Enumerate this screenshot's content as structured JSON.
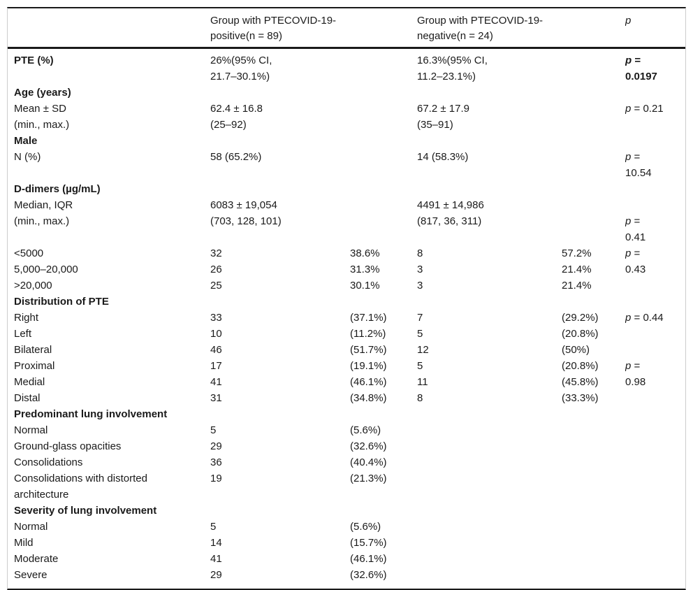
{
  "table": {
    "colors": {
      "text": "#1a1a1a",
      "rule_dark": "#1a1a1a",
      "rule_light": "#cccccc",
      "background": "#ffffff"
    },
    "header": {
      "label": "",
      "group1": "Group with PTECOVID-19-\npositive(n = 89)",
      "group2": "Group with PTECOVID-19-\nnegative(n = 24)",
      "p": "p"
    },
    "rows": [
      {
        "label": "PTE (%)",
        "bold": true,
        "v1": "26%(95% CI,\n21.7–30.1%)",
        "v2": "16.3%(95% CI,\n11.2–23.1%)",
        "p": "p =\n0.0197",
        "pBold": true
      },
      {
        "label": "Age (years)",
        "bold": true
      },
      {
        "label": "Mean ± SD",
        "v1": "62.4 ± 16.8",
        "v2": "67.2 ± 17.9",
        "p": "p = 0.21"
      },
      {
        "label": "(min., max.)",
        "v1": "(25–92)",
        "v2": "(35–91)"
      },
      {
        "label": "Male",
        "bold": true
      },
      {
        "label": "N (%)",
        "v1": "58 (65.2%)",
        "v2": "14 (58.3%)",
        "p": "p =\n10.54"
      },
      {
        "label": "D-dimers (µg/mL)",
        "bold": true
      },
      {
        "label": "Median, IQR",
        "v1": "6083 ± 19,054",
        "v2": "4491 ± 14,986"
      },
      {
        "label": "(min., max.)",
        "v1": "(703, 128, 101)",
        "v2": "(817, 36, 311)",
        "p": "p =\n0.41"
      },
      {
        "label": "<5000",
        "v1": "32",
        "p1": "38.6%",
        "v2": "8",
        "p2": "57.2%",
        "p": "p =\n0.43",
        "pRowspan": 2
      },
      {
        "label": "5,000–20,000",
        "v1": "26",
        "p1": "31.3%",
        "v2": "3",
        "p2": "21.4%",
        "pSkip": true
      },
      {
        "label": ">20,000",
        "v1": "25",
        "p1": "30.1%",
        "v2": "3",
        "p2": "21.4%"
      },
      {
        "label": "Distribution of PTE",
        "bold": true
      },
      {
        "label": "Right",
        "v1": "33",
        "p1": "(37.1%)",
        "v2": "7",
        "p2": "(29.2%)",
        "p": "p = 0.44"
      },
      {
        "label": "Left",
        "v1": "10",
        "p1": "(11.2%)",
        "v2": "5",
        "p2": "(20.8%)"
      },
      {
        "label": "Bilateral",
        "v1": "46",
        "p1": "(51.7%)",
        "v2": "12",
        "p2": "(50%)"
      },
      {
        "label": "Proximal",
        "v1": "17",
        "p1": "(19.1%)",
        "v2": "5",
        "p2": "(20.8%)",
        "p": "p =\n0.98",
        "pRowspan": 2
      },
      {
        "label": "Medial",
        "v1": "41",
        "p1": "(46.1%)",
        "v2": "11",
        "p2": "(45.8%)",
        "pSkip": true
      },
      {
        "label": "Distal",
        "v1": "31",
        "p1": "(34.8%)",
        "v2": "8",
        "p2": "(33.3%)"
      },
      {
        "label": "Predominant lung involvement",
        "bold": true
      },
      {
        "label": "Normal",
        "v1": "5",
        "p1": "(5.6%)"
      },
      {
        "label": "Ground-glass opacities",
        "v1": "29",
        "p1": "(32.6%)"
      },
      {
        "label": "Consolidations",
        "v1": "36",
        "p1": "(40.4%)"
      },
      {
        "label": "Consolidations with distorted\narchitecture",
        "v1": "19",
        "p1": "(21.3%)"
      },
      {
        "label": "Severity of lung involvement",
        "bold": true
      },
      {
        "label": "Normal",
        "v1": "5",
        "p1": "(5.6%)"
      },
      {
        "label": "Mild",
        "v1": "14",
        "p1": "(15.7%)"
      },
      {
        "label": "Moderate",
        "v1": "41",
        "p1": "(46.1%)"
      },
      {
        "label": "Severe",
        "v1": "29",
        "p1": "(32.6%)"
      }
    ]
  }
}
